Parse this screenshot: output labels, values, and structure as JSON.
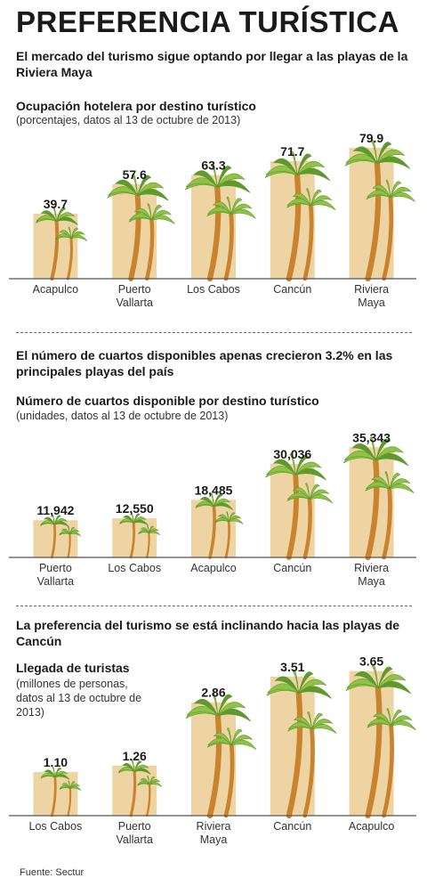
{
  "header": {
    "title": "PREFERENCIA TURÍSTICA",
    "subtitle": "El mercado del turismo sigue optando por llegar a las playas de la Riviera Maya"
  },
  "sections": [
    {
      "subtitle": "",
      "chart_title": "Ocupación hotelera por destino turístico",
      "chart_note": "(porcentajes, datos al 13 de octubre de 2013)"
    },
    {
      "subtitle": "El número de cuartos disponibles apenas crecieron 3.2% en las principales playas del país",
      "chart_title": "Número de cuartos disponible por destino turístico",
      "chart_note": "(unidades, datos al 13 de octubre de 2013)"
    },
    {
      "subtitle": "La preferencia del turismo se está inclinando hacia las playas de Cancún",
      "chart_title": "Llegada de turistas",
      "chart_note": "(millones de personas, datos al 13 de octubre de 2013)"
    }
  ],
  "source": "Fuente: Sectur",
  "colors": {
    "bar": "#eed4a2",
    "trunk": "#c9822e",
    "frond": "#8fc246",
    "frond_dark": "#5f9a2c",
    "axis": "#555555"
  },
  "chart_data": [
    {
      "type": "bar",
      "title": "Ocupación hotelera por destino turístico",
      "ylabel": "(porcentajes, datos al 13 de octubre de 2013)",
      "categories": [
        [
          "Acapulco"
        ],
        [
          "Puerto",
          "Vallarta"
        ],
        [
          "Los Cabos"
        ],
        [
          "Cancún"
        ],
        [
          "Riviera",
          "Maya"
        ]
      ],
      "values": [
        39.7,
        57.6,
        63.3,
        71.7,
        79.9
      ],
      "value_labels": [
        "39.7",
        "57.6",
        "63.3",
        "71.7",
        "79.9"
      ],
      "ylim": [
        0,
        100
      ]
    },
    {
      "type": "bar",
      "title": "Número de cuartos disponible por destino turístico",
      "ylabel": "(unidades, datos al 13 de octubre de 2013)",
      "categories": [
        [
          "Puerto",
          "Vallarta"
        ],
        [
          "Los Cabos"
        ],
        [
          "Acapulco"
        ],
        [
          "Cancún"
        ],
        [
          "Riviera",
          "Maya"
        ]
      ],
      "values": [
        11942,
        12550,
        18485,
        30036,
        35343
      ],
      "value_labels": [
        "11,942",
        "12,550",
        "18,485",
        "30,036",
        "35,343"
      ],
      "ylim": [
        0,
        40000
      ]
    },
    {
      "type": "bar",
      "title": "Llegada de turistas",
      "ylabel": "(millones de personas, datos al 13 de octubre de 2013)",
      "categories": [
        [
          "Los Cabos"
        ],
        [
          "Puerto",
          "Vallarta"
        ],
        [
          "Riviera",
          "Maya"
        ],
        [
          "Cancún"
        ],
        [
          "Acapulco"
        ]
      ],
      "values": [
        1.1,
        1.26,
        2.86,
        3.51,
        3.65
      ],
      "value_labels": [
        "1.10",
        "1.26",
        "2.86",
        "3.51",
        "3.65"
      ],
      "ylim": [
        0,
        4
      ]
    }
  ]
}
